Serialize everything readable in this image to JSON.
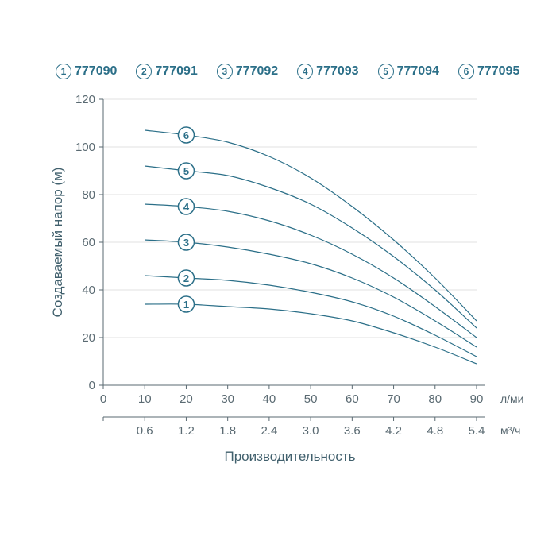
{
  "legend": {
    "color": "#2b6f88",
    "items": [
      {
        "num": "1",
        "label": "777090"
      },
      {
        "num": "2",
        "label": "777091"
      },
      {
        "num": "3",
        "label": "777092"
      },
      {
        "num": "4",
        "label": "777093"
      },
      {
        "num": "5",
        "label": "777094"
      },
      {
        "num": "6",
        "label": "777095"
      }
    ]
  },
  "chart": {
    "type": "line",
    "background_color": "#ffffff",
    "axis_color": "#5a6a72",
    "grid_color": "#e0e0e0",
    "text_color": "#5a6a72",
    "curve_color": "#2b6f88",
    "y": {
      "title": "Создаваемый напор (м)",
      "min": 0,
      "max": 120,
      "ticks": [
        0,
        20,
        40,
        60,
        80,
        100,
        120
      ]
    },
    "x1": {
      "title": "Производительность",
      "unit": "л/мин",
      "ticks": [
        0,
        10,
        20,
        30,
        40,
        50,
        60,
        70,
        80,
        90
      ]
    },
    "x2": {
      "unit": "м³/ч",
      "ticks": [
        "",
        "0.6",
        "1.2",
        "1.8",
        "2.4",
        "3.0",
        "3.6",
        "4.2",
        "4.8",
        "5.4"
      ]
    },
    "marker_x": 20,
    "series": [
      {
        "id": "1",
        "points": [
          [
            10,
            34
          ],
          [
            20,
            34
          ],
          [
            30,
            33
          ],
          [
            40,
            32
          ],
          [
            50,
            30
          ],
          [
            60,
            27
          ],
          [
            70,
            22
          ],
          [
            80,
            16
          ],
          [
            90,
            9
          ]
        ]
      },
      {
        "id": "2",
        "points": [
          [
            10,
            46
          ],
          [
            20,
            45
          ],
          [
            30,
            44
          ],
          [
            40,
            42
          ],
          [
            50,
            39
          ],
          [
            60,
            35
          ],
          [
            70,
            29
          ],
          [
            80,
            21
          ],
          [
            90,
            12
          ]
        ]
      },
      {
        "id": "3",
        "points": [
          [
            10,
            61
          ],
          [
            20,
            60
          ],
          [
            30,
            58
          ],
          [
            40,
            55
          ],
          [
            50,
            51
          ],
          [
            60,
            45
          ],
          [
            70,
            37
          ],
          [
            80,
            27
          ],
          [
            90,
            16
          ]
        ]
      },
      {
        "id": "4",
        "points": [
          [
            10,
            76
          ],
          [
            20,
            75
          ],
          [
            30,
            73
          ],
          [
            40,
            69
          ],
          [
            50,
            63
          ],
          [
            60,
            55
          ],
          [
            70,
            45
          ],
          [
            80,
            33
          ],
          [
            90,
            20
          ]
        ]
      },
      {
        "id": "5",
        "points": [
          [
            10,
            92
          ],
          [
            20,
            90
          ],
          [
            30,
            88
          ],
          [
            40,
            83
          ],
          [
            50,
            76
          ],
          [
            60,
            66
          ],
          [
            70,
            54
          ],
          [
            80,
            40
          ],
          [
            90,
            24
          ]
        ]
      },
      {
        "id": "6",
        "points": [
          [
            10,
            107
          ],
          [
            20,
            105
          ],
          [
            30,
            102
          ],
          [
            40,
            96
          ],
          [
            50,
            87
          ],
          [
            60,
            75
          ],
          [
            70,
            61
          ],
          [
            80,
            45
          ],
          [
            90,
            27
          ]
        ]
      }
    ]
  }
}
